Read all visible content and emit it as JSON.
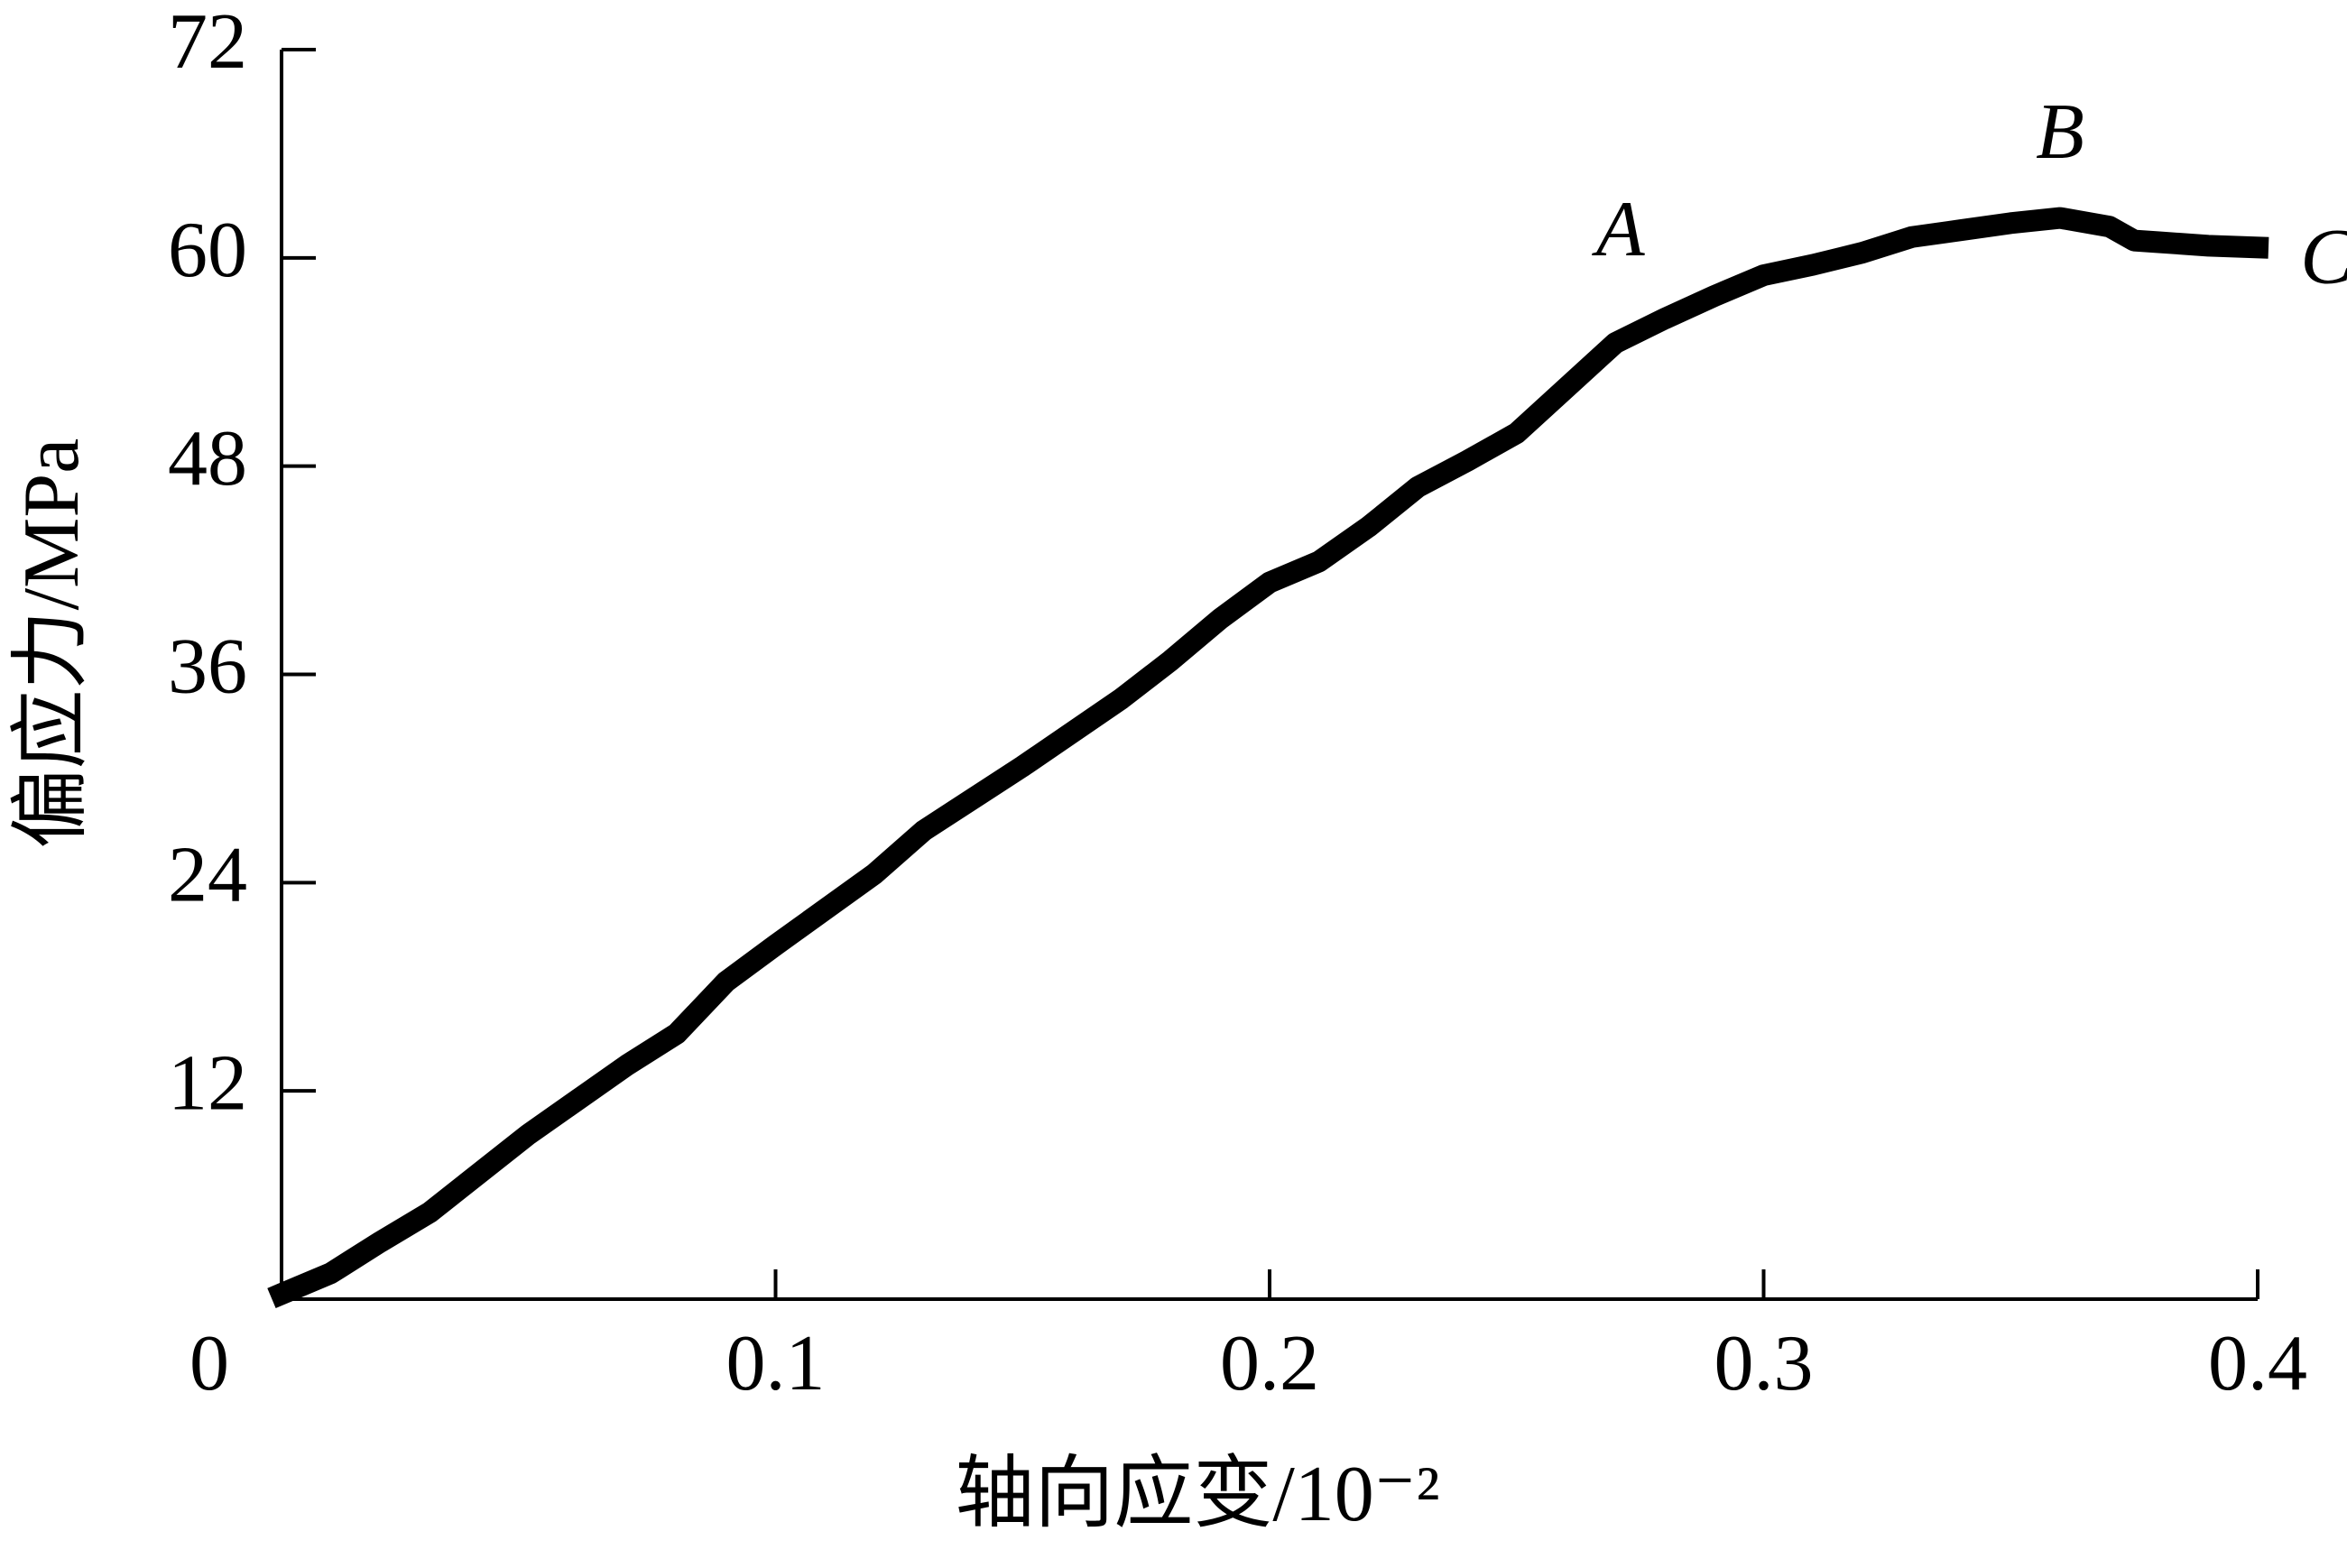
{
  "chart_data": {
    "type": "line",
    "x_label": "轴向应变/10⁻²",
    "y_label": "偏应力/MPa",
    "x": [
      0,
      0.01,
      0.02,
      0.03,
      0.05,
      0.07,
      0.08,
      0.09,
      0.1,
      0.12,
      0.13,
      0.15,
      0.17,
      0.18,
      0.19,
      0.2,
      0.21,
      0.22,
      0.23,
      0.24,
      0.25,
      0.26,
      0.27,
      0.28,
      0.29,
      0.3,
      0.31,
      0.32,
      0.33,
      0.34,
      0.35,
      0.36,
      0.37,
      0.375,
      0.38,
      0.39,
      0.4
    ],
    "series": [
      {
        "color": "#000000",
        "values": [
          0.3,
          1.5,
          3.3,
          5.0,
          9.5,
          13.5,
          15.3,
          18.3,
          20.4,
          24.5,
          27.0,
          30.7,
          34.6,
          36.8,
          39.2,
          41.3,
          42.5,
          44.5,
          46.8,
          48.3,
          49.9,
          52.5,
          55.1,
          56.5,
          57.8,
          59.0,
          59.6,
          60.3,
          61.2,
          61.6,
          62.0,
          62.3,
          61.8,
          61.0,
          60.9,
          60.7,
          60.6
        ]
      }
    ],
    "xlim": [
      0,
      0.4
    ],
    "xticks": [
      0,
      0.1,
      0.2,
      0.3,
      0.4
    ],
    "ylim": [
      0,
      72
    ],
    "yticks": [
      12,
      24,
      36,
      48,
      60,
      72
    ],
    "annotations": [
      {
        "text": "A",
        "x": 0.271,
        "y": 61.2
      },
      {
        "text": "B",
        "x": 0.36,
        "y": 66.8
      },
      {
        "text": "C",
        "x": 0.414,
        "y": 59.6
      }
    ]
  }
}
